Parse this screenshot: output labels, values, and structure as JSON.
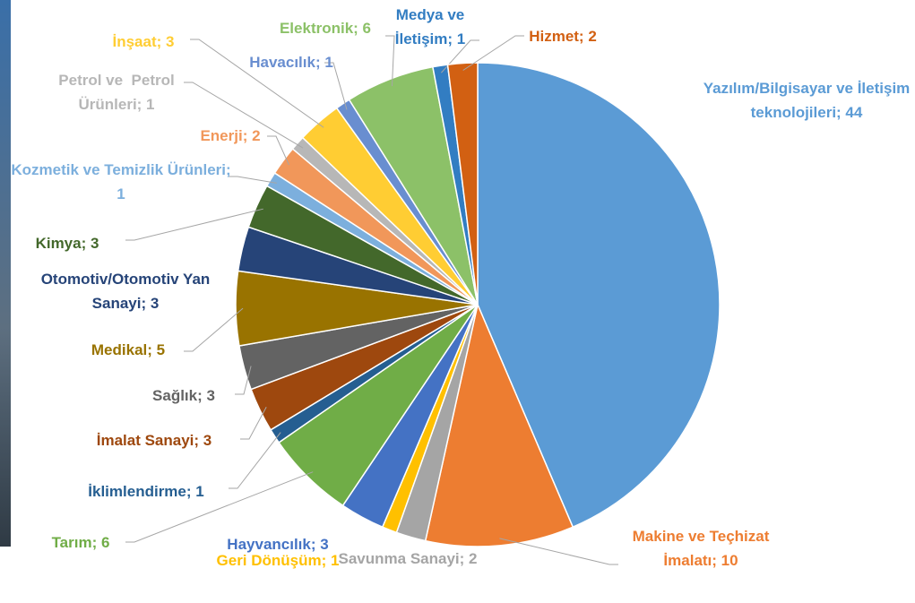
{
  "chart_data": {
    "type": "pie",
    "values": [
      44,
      10,
      2,
      1,
      3,
      6,
      1,
      3,
      3,
      5,
      3,
      3,
      1,
      2,
      1,
      3,
      1,
      6,
      1,
      2
    ],
    "value_labels": [
      "Yazılım/Bilgisayar ve İletişim teknolojileri; 44",
      "Makine ve Teçhizat İmalatı; 10",
      "Savunma Sanayi; 2",
      "Geri Dönüşüm; 1",
      "Hayvancılık; 3",
      "Tarım; 6",
      "İklimlendirme; 1",
      "İmalat Sanayi; 3",
      "Sağlık; 3",
      "Medikal; 5",
      "Otomotiv/Otomotiv Yan Sanayi; 3",
      "Kimya; 3",
      "Kozmetik ve Temizlik Ürünleri; 1",
      "Enerji; 2",
      "Petrol ve  Petrol Ürünleri; 1",
      "İnşaat; 3",
      "Havacılık; 1",
      "Elektronik; 6",
      "Medya ve İletişim; 1",
      "Hizmet; 2"
    ],
    "colors": [
      "#5b9bd5",
      "#ed7d31",
      "#a5a5a5",
      "#ffc000",
      "#4472c4",
      "#70ad47",
      "#255e91",
      "#9e480e",
      "#636363",
      "#997300",
      "#264478",
      "#43682b",
      "#7cafdd",
      "#f1975a",
      "#b7b7b7",
      "#ffcd33",
      "#698ed0",
      "#8cc168",
      "#327dc2",
      "#d26012"
    ]
  }
}
